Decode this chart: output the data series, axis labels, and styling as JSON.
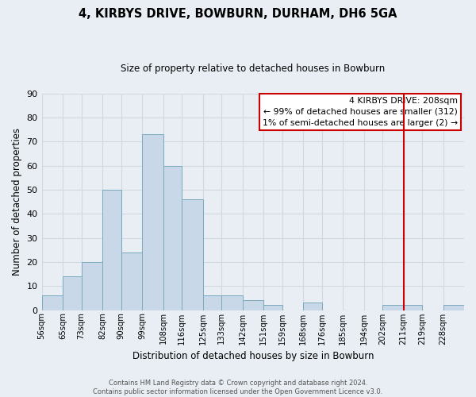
{
  "title": "4, KIRBYS DRIVE, BOWBURN, DURHAM, DH6 5GA",
  "subtitle": "Size of property relative to detached houses in Bowburn",
  "xlabel": "Distribution of detached houses by size in Bowburn",
  "ylabel": "Number of detached properties",
  "bin_labels": [
    "56sqm",
    "65sqm",
    "73sqm",
    "82sqm",
    "90sqm",
    "99sqm",
    "108sqm",
    "116sqm",
    "125sqm",
    "133sqm",
    "142sqm",
    "151sqm",
    "159sqm",
    "168sqm",
    "176sqm",
    "185sqm",
    "194sqm",
    "202sqm",
    "211sqm",
    "219sqm",
    "228sqm"
  ],
  "bin_edges": [
    56,
    65,
    73,
    82,
    90,
    99,
    108,
    116,
    125,
    133,
    142,
    151,
    159,
    168,
    176,
    185,
    194,
    202,
    211,
    219,
    228
  ],
  "bar_heights": [
    6,
    14,
    20,
    50,
    24,
    73,
    60,
    46,
    6,
    6,
    4,
    2,
    0,
    3,
    0,
    0,
    0,
    2,
    2,
    0,
    2
  ],
  "bar_color": "#c8d8e8",
  "bar_edge_color": "#7aaabb",
  "grid_color": "#d0d8e0",
  "vline_x": 211,
  "vline_color": "#cc0000",
  "box_text_line1": "4 KIRBYS DRIVE: 208sqm",
  "box_text_line2": "← 99% of detached houses are smaller (312)",
  "box_text_line3": "1% of semi-detached houses are larger (2) →",
  "box_color": "#ffffff",
  "box_edge_color": "#cc0000",
  "ylim": [
    0,
    90
  ],
  "yticks": [
    0,
    10,
    20,
    30,
    40,
    50,
    60,
    70,
    80,
    90
  ],
  "footer_line1": "Contains HM Land Registry data © Crown copyright and database right 2024.",
  "footer_line2": "Contains public sector information licensed under the Open Government Licence v3.0.",
  "bg_color": "#e8eef4",
  "plot_bg_color": "#e8eef4"
}
